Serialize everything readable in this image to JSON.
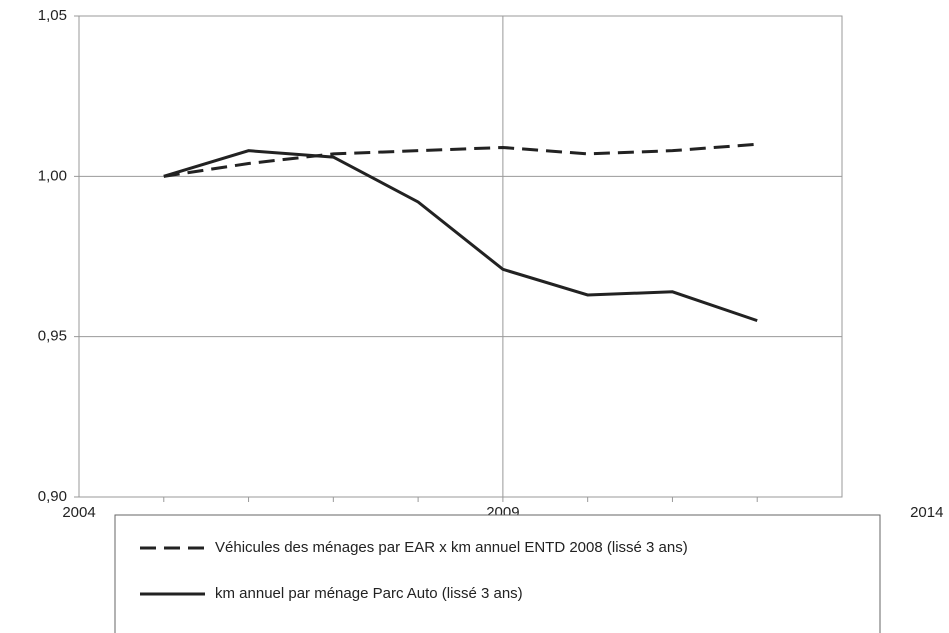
{
  "chart_data": {
    "type": "line",
    "x": [
      2005,
      2006,
      2007,
      2008,
      2009,
      2010,
      2011,
      2012
    ],
    "series": [
      {
        "name": "Véhicules des ménages par EAR x km annuel ENTD 2008 (lissé 3 ans)",
        "color": "#222222",
        "dash": true,
        "values": [
          1.0,
          1.004,
          1.007,
          1.008,
          1.009,
          1.007,
          1.008,
          1.01
        ]
      },
      {
        "name": "km annuel par ménage Parc Auto (lissé 3 ans)",
        "color": "#222222",
        "dash": false,
        "values": [
          1.0,
          1.008,
          1.006,
          0.992,
          0.971,
          0.963,
          0.964,
          0.955
        ]
      }
    ],
    "xlim": [
      2004,
      2013
    ],
    "xticks": [
      2004,
      2009,
      2014
    ],
    "ylim": [
      0.9,
      1.05
    ],
    "yticks": [
      {
        "value": 0.9,
        "label": "0,90"
      },
      {
        "value": 0.95,
        "label": "0,95"
      },
      {
        "value": 1.0,
        "label": "1,00"
      },
      {
        "value": 1.05,
        "label": "1,05"
      }
    ],
    "grid": true,
    "legend": "bottom"
  }
}
